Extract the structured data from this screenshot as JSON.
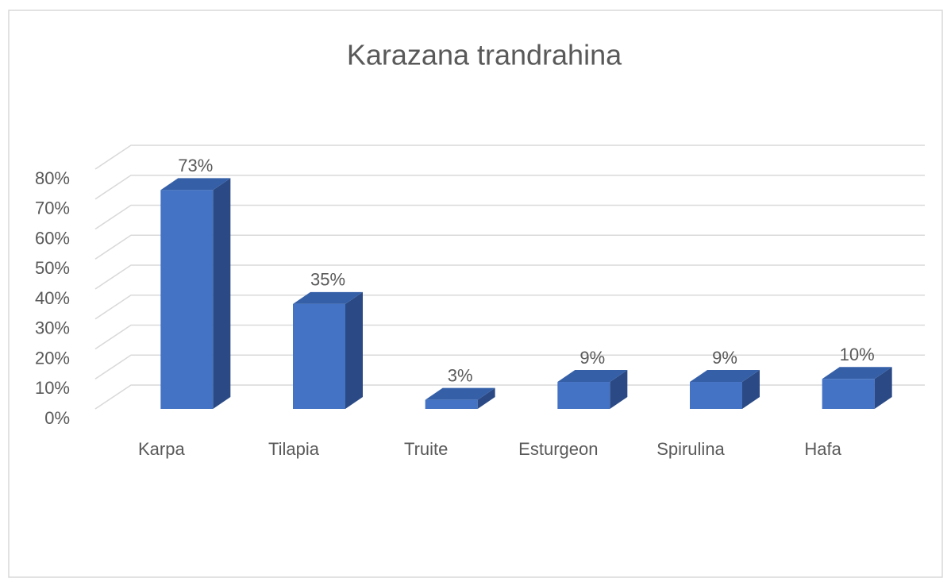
{
  "chart_data": {
    "type": "bar3d",
    "title": "Karazana trandrahina",
    "categories": [
      "Karpa",
      "Tilapia",
      "Truite",
      "Esturgeon",
      "Spirulina",
      "Hafa"
    ],
    "values": [
      73,
      35,
      3,
      9,
      9,
      10
    ],
    "value_labels": [
      "73%",
      "35%",
      "3%",
      "9%",
      "9%",
      "10%"
    ],
    "color": "#4472c4",
    "ylim": [
      0,
      80
    ],
    "yticks": [
      {
        "value": 0,
        "label": "0%"
      },
      {
        "value": 10,
        "label": "10%"
      },
      {
        "value": 20,
        "label": "20%"
      },
      {
        "value": 30,
        "label": "30%"
      },
      {
        "value": 40,
        "label": "40%"
      },
      {
        "value": 50,
        "label": "50%"
      },
      {
        "value": 60,
        "label": "60%"
      },
      {
        "value": 70,
        "label": "70%"
      },
      {
        "value": 80,
        "label": "80%"
      }
    ],
    "grid": true
  }
}
